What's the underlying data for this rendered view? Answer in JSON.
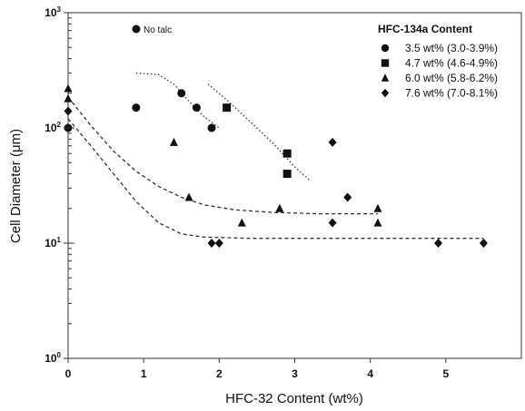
{
  "chart_data": {
    "type": "scatter",
    "xlabel": "HFC-32 Content (wt%)",
    "ylabel": "Cell Diameter (μm)",
    "xlim": [
      0,
      6
    ],
    "ylim": [
      1,
      1000
    ],
    "yscale": "log",
    "x_ticks": [
      "0",
      "1",
      "2",
      "3",
      "4",
      "5"
    ],
    "y_ticks": [
      {
        "base": "10",
        "exp": "0"
      },
      {
        "base": "10",
        "exp": "1"
      },
      {
        "base": "10",
        "exp": "2"
      },
      {
        "base": "10",
        "exp": "3"
      }
    ],
    "annotation": "No talc",
    "legend": {
      "title": "HFC-134a Content",
      "position": "top-right"
    },
    "series": [
      {
        "name": "3.5 wt% (3.0-3.9%)",
        "marker": "circle",
        "points": [
          [
            0,
            100
          ],
          [
            0.9,
            150
          ],
          [
            1.5,
            200
          ],
          [
            1.7,
            150
          ],
          [
            1.9,
            100
          ]
        ]
      },
      {
        "name": "4.7 wt% (4.6-4.9%)",
        "marker": "square",
        "points": [
          [
            2.1,
            150
          ],
          [
            2.9,
            60
          ],
          [
            2.9,
            40
          ]
        ]
      },
      {
        "name": "6.0 wt% (5.8-6.2%)",
        "marker": "triangle",
        "points": [
          [
            0,
            220
          ],
          [
            0,
            180
          ],
          [
            1.4,
            75
          ],
          [
            1.6,
            25
          ],
          [
            2.3,
            15
          ],
          [
            2.8,
            20
          ],
          [
            4.1,
            20
          ],
          [
            4.1,
            15
          ]
        ]
      },
      {
        "name": "7.6 wt% (7.0-8.1%)",
        "marker": "diamond",
        "points": [
          [
            0,
            140
          ],
          [
            1.9,
            10
          ],
          [
            2.0,
            10
          ],
          [
            3.5,
            75
          ],
          [
            3.5,
            15
          ],
          [
            3.7,
            25
          ],
          [
            4.9,
            10
          ],
          [
            5.5,
            10
          ]
        ]
      }
    ],
    "trend_lines": [
      {
        "style": "dotted",
        "points": [
          [
            0.9,
            300
          ],
          [
            1.2,
            290
          ],
          [
            1.4,
            240
          ],
          [
            1.6,
            170
          ],
          [
            1.8,
            125
          ],
          [
            2.0,
            100
          ]
        ]
      },
      {
        "style": "dotted",
        "points": [
          [
            1.85,
            240
          ],
          [
            2.1,
            175
          ],
          [
            2.4,
            115
          ],
          [
            2.7,
            75
          ],
          [
            3.0,
            46
          ],
          [
            3.2,
            35
          ]
        ]
      },
      {
        "style": "dashed",
        "points": [
          [
            0,
            185
          ],
          [
            0.3,
            105
          ],
          [
            0.6,
            63
          ],
          [
            0.9,
            42
          ],
          [
            1.2,
            31
          ],
          [
            1.5,
            25
          ],
          [
            1.8,
            21.5
          ],
          [
            2.2,
            19.5
          ],
          [
            2.7,
            18.5
          ],
          [
            3.3,
            18
          ],
          [
            4.1,
            18
          ]
        ]
      },
      {
        "style": "dashed",
        "points": [
          [
            0,
            120
          ],
          [
            0.3,
            70
          ],
          [
            0.6,
            40
          ],
          [
            0.9,
            23
          ],
          [
            1.2,
            15
          ],
          [
            1.5,
            12
          ],
          [
            1.8,
            11.3
          ],
          [
            2.4,
            11
          ],
          [
            3.5,
            11
          ],
          [
            5.5,
            11
          ]
        ]
      }
    ]
  }
}
